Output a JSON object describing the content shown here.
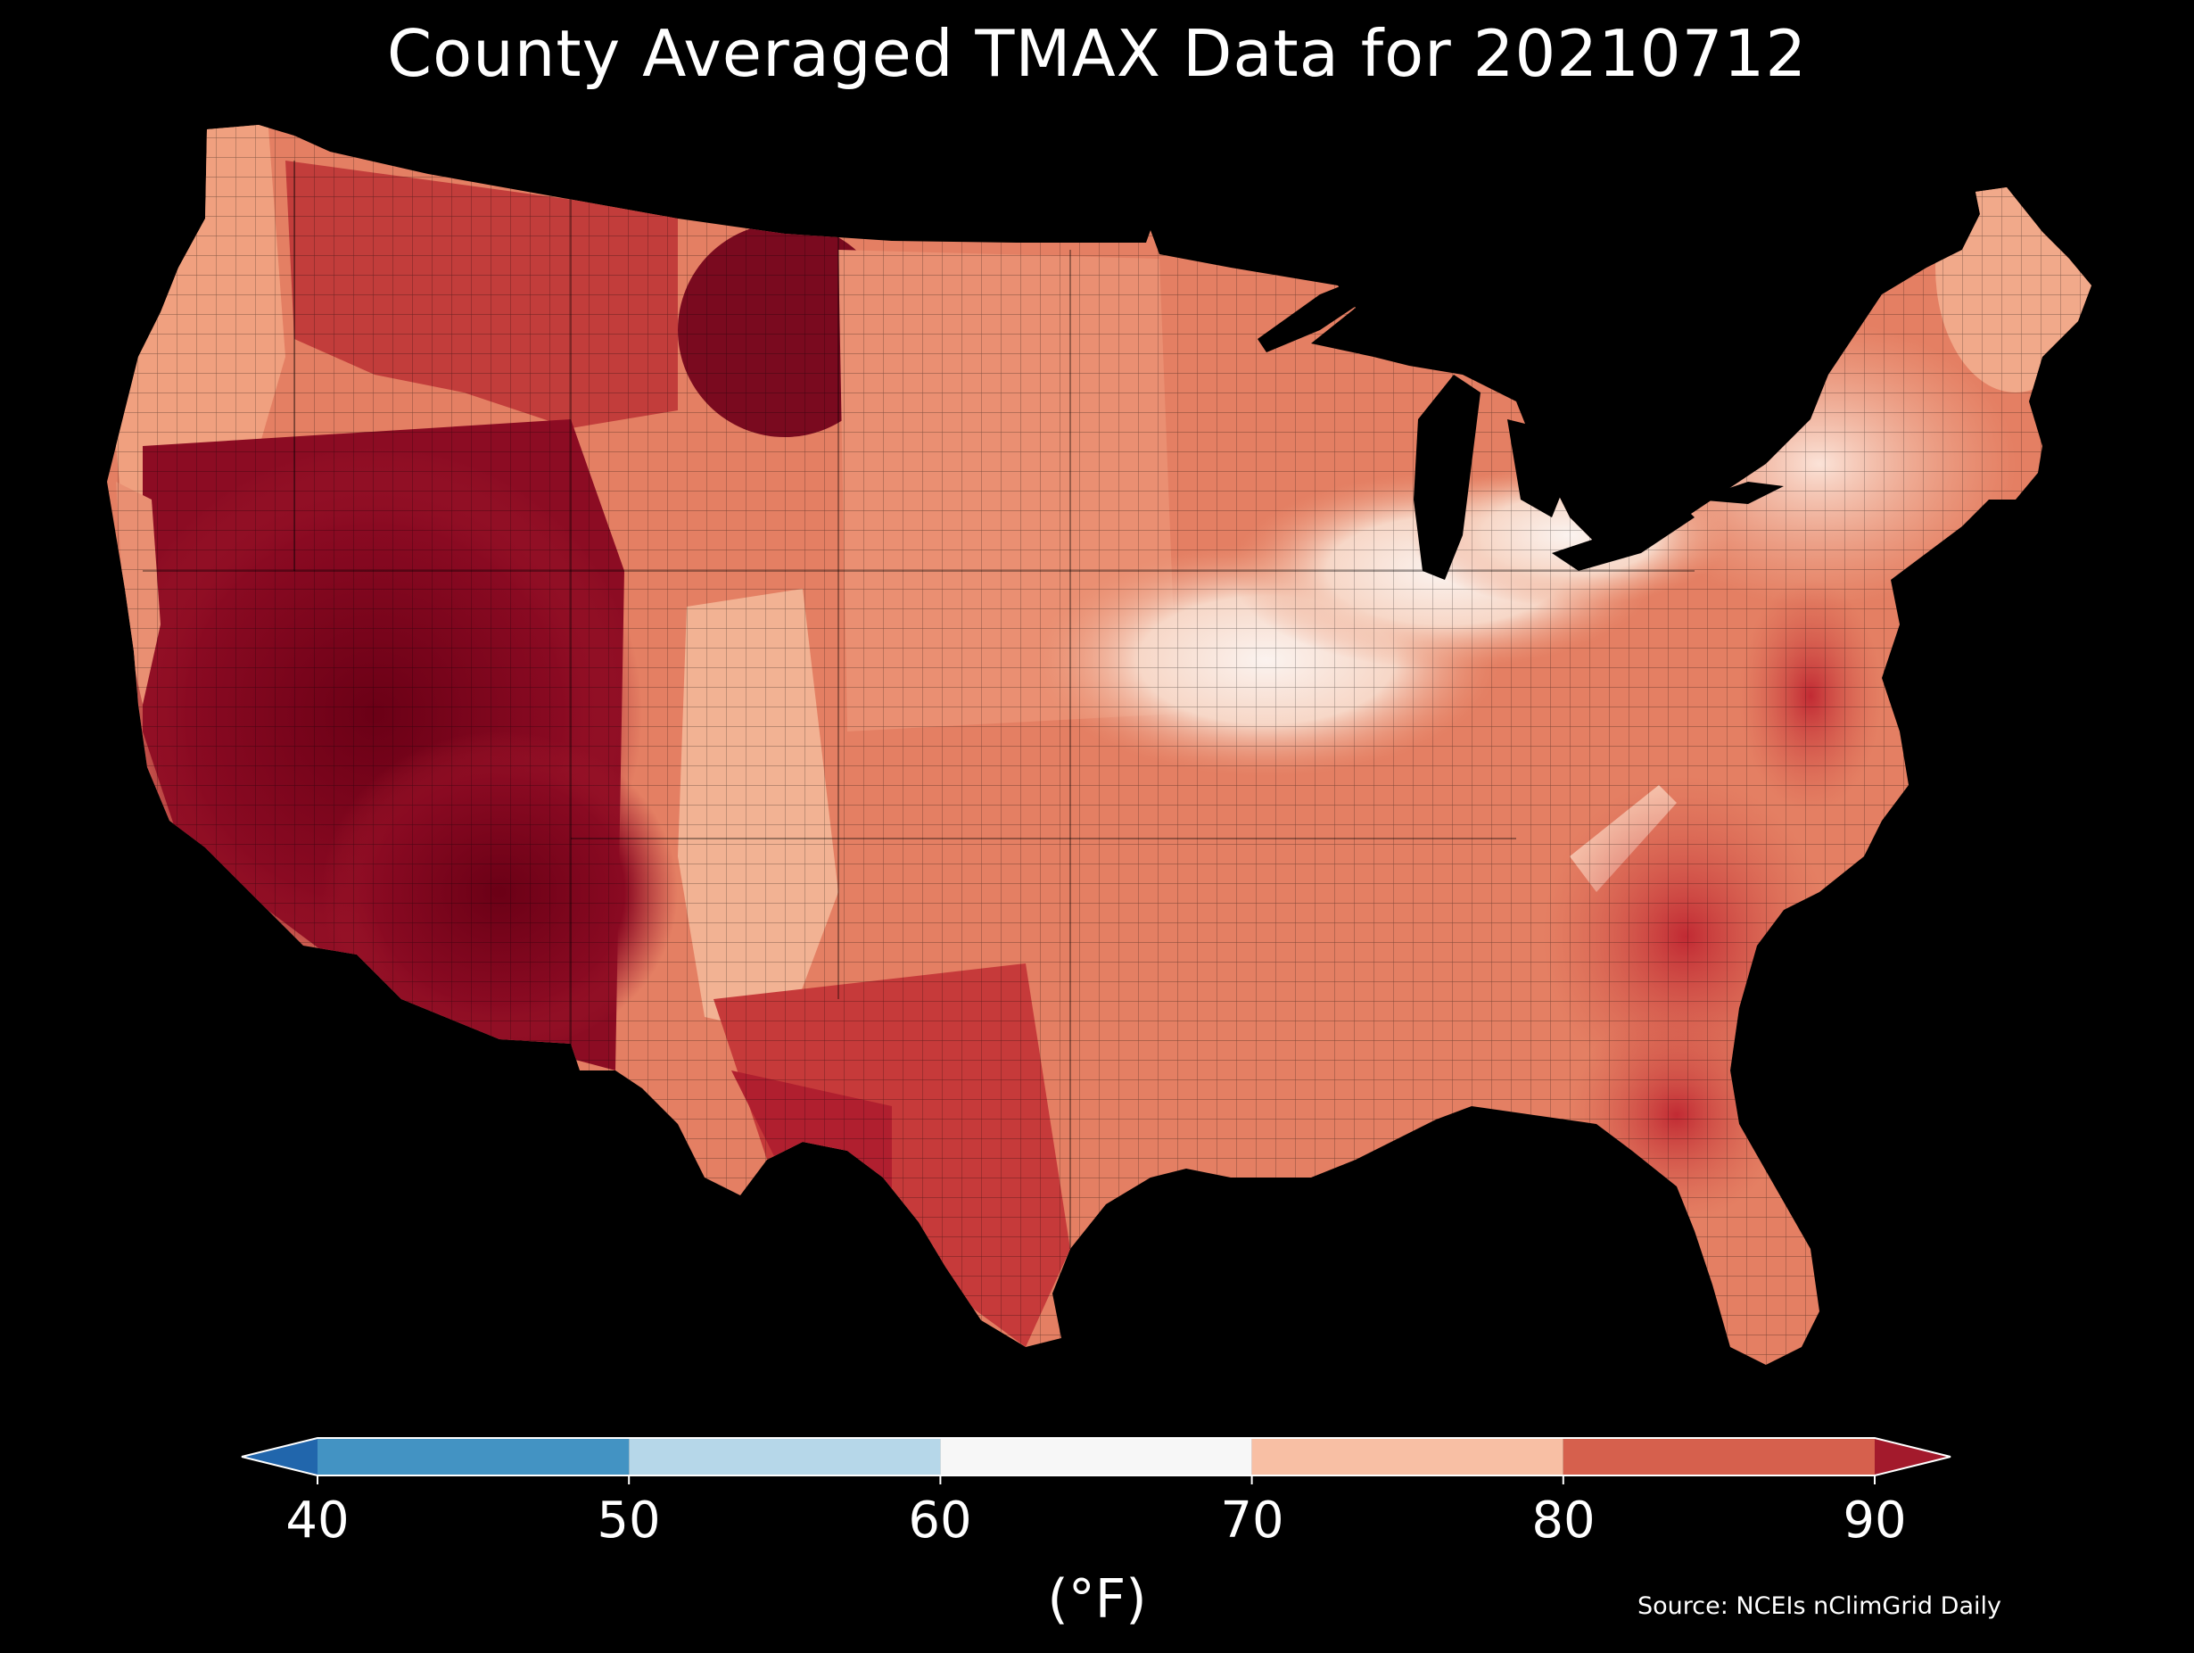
{
  "title": "County Averaged TMAX Data for 20210712",
  "map": {
    "region": "Contiguous United States (county level)",
    "variable": "TMAX",
    "date": "20210712"
  },
  "colorbar": {
    "unit_label": "(°F)",
    "ticks": [
      "40",
      "50",
      "60",
      "70",
      "80",
      "90"
    ],
    "bins": [
      {
        "range": "<40",
        "color": "#2166ac"
      },
      {
        "range": "40-50",
        "color": "#4393c3"
      },
      {
        "range": "50-60",
        "color": "#b6d7e9"
      },
      {
        "range": "60-70",
        "color": "#f7f7f7"
      },
      {
        "range": "70-80",
        "color": "#f8bfa4"
      },
      {
        "range": "80-90",
        "color": "#d6604d"
      },
      {
        "range": ">90",
        "color": "#a31a2c"
      }
    ],
    "extend": "both"
  },
  "source": "Source: NCEIs nClimGrid Daily"
}
